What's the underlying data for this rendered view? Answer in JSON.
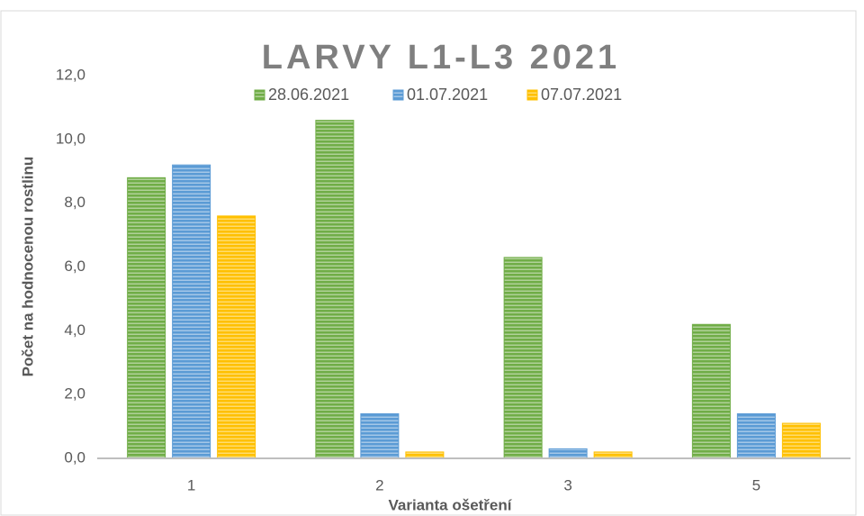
{
  "chart_data": {
    "type": "bar",
    "title": "LARVY L1-L3 2021",
    "x_label": "Varianta ošetření",
    "y_label": "Počet na hodnocenou rostlinu",
    "categories": [
      "1",
      "2",
      "3",
      "5"
    ],
    "series": [
      {
        "name": "28.06.2021",
        "color": "#70ad47",
        "values": [
          8.8,
          10.6,
          6.3,
          4.2
        ]
      },
      {
        "name": "01.07.2021",
        "color": "#5b9bd5",
        "values": [
          9.2,
          1.4,
          0.3,
          1.4
        ]
      },
      {
        "name": "07.07.2021",
        "color": "#ffc000",
        "values": [
          7.6,
          0.2,
          0.2,
          1.1
        ]
      }
    ],
    "ylim": [
      0,
      12
    ],
    "yticks": [
      {
        "value": 0,
        "label": "0,0"
      },
      {
        "value": 2,
        "label": "2,0"
      },
      {
        "value": 4,
        "label": "4,0"
      },
      {
        "value": 6,
        "label": "6,0"
      },
      {
        "value": 8,
        "label": "8,0"
      },
      {
        "value": 10,
        "label": "10,0"
      },
      {
        "value": 12,
        "label": "12,0"
      }
    ],
    "grid": false,
    "legend": "top"
  }
}
